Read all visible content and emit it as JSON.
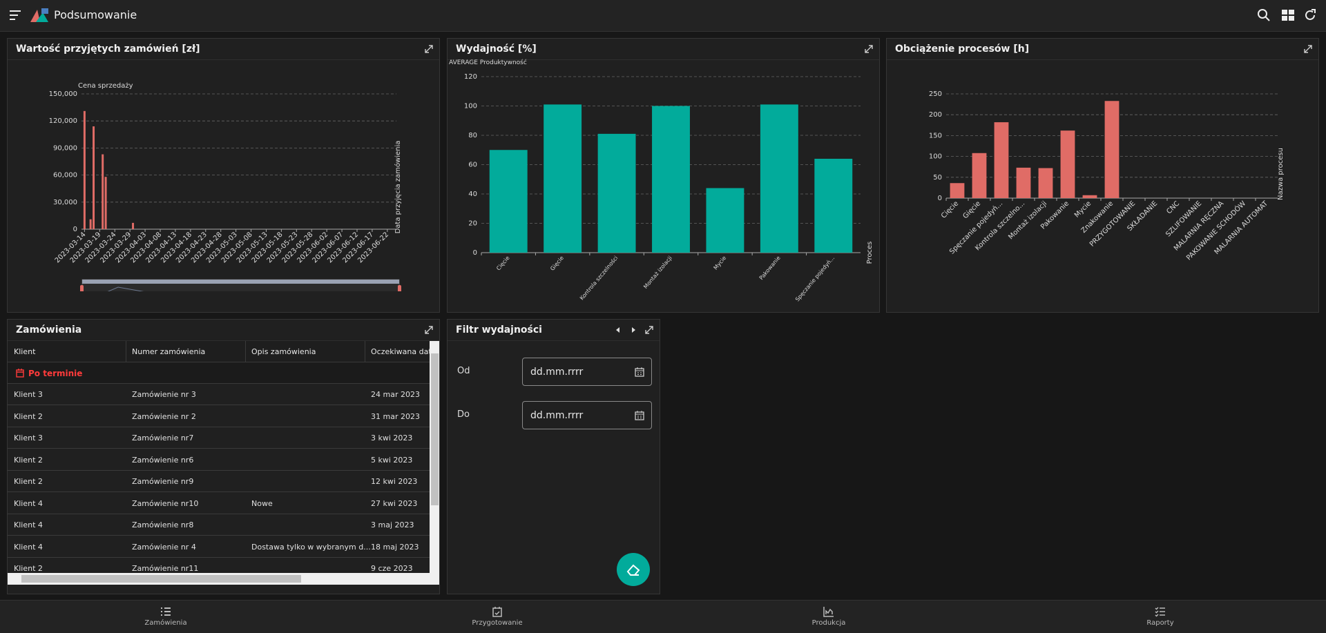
{
  "header": {
    "title": "Podsumowanie"
  },
  "chart_data": [
    {
      "type": "bar",
      "title": "Wartość przyjętych zamówień [zł]",
      "y_label": "Cena sprzedaży",
      "x_label": "Data przyjęcia zamówienia",
      "x": [
        "2023-03-14",
        "2023-03-16",
        "2023-03-17",
        "2023-03-20",
        "2023-03-21",
        "2023-03-30"
      ],
      "values": [
        131000,
        11000,
        114000,
        83000,
        58000,
        7000
      ],
      "color": "#e06c66",
      "xlim": [
        "2023-03-13",
        "2023-06-25"
      ],
      "xticks": [
        "2023-03-14",
        "2023-03-19",
        "2023-03-24",
        "2023-03-29",
        "2023-04-03",
        "2023-04-08",
        "2023-04-13",
        "2023-04-18",
        "2023-04-23",
        "2023-04-28",
        "2023-05-03",
        "2023-05-08",
        "2023-05-13",
        "2023-05-18",
        "2023-05-23",
        "2023-05-28",
        "2023-06-02",
        "2023-06-07",
        "2023-06-12",
        "2023-06-17",
        "2023-06-22"
      ],
      "ylim": [
        0,
        150000
      ],
      "yticks": [
        0,
        {
          "value": 30000,
          "label": "30,000"
        },
        {
          "value": 60000,
          "label": "60,000"
        },
        {
          "value": 90000,
          "label": "90,000"
        },
        {
          "value": 120000,
          "label": "120,000"
        },
        {
          "value": 150000,
          "label": "150,000"
        }
      ],
      "grid": true
    },
    {
      "type": "bar",
      "title": "Wydajność [%]",
      "subtitle": "AVERAGE Produktywność",
      "x_label": "Proces",
      "categories": [
        "Cięcie",
        "Gięcie",
        "Kontrola szczelności",
        "Montaż izolacji",
        "Mycie",
        "Pakowanie",
        "Spęczanie pojedyń..."
      ],
      "values": [
        70,
        101,
        81,
        100,
        44,
        101,
        64
      ],
      "color": "#02ab9b",
      "ylim": [
        0,
        120
      ],
      "yticks": [
        0,
        20,
        40,
        60,
        80,
        100,
        120
      ],
      "grid": true
    },
    {
      "type": "bar",
      "title": "Obciążenie procesów [h]",
      "x_label": "Nazwa procesu",
      "categories": [
        "Cięcie",
        "Gięcie",
        "Spęczanie pojedyń...",
        "Kontrola szczelno...",
        "Montaż izolacji",
        "Pakowanie",
        "Mycie",
        "Znakowanie",
        "PRZYGOTOWANIE",
        "SKŁADANIE",
        "CNC",
        "SZLIFOWANIE",
        "MALARNIA RĘCZNA",
        "PAKOWANIE SCHODÓW",
        "MALARNIA AUTOMAT"
      ],
      "values": [
        36,
        108,
        182,
        73,
        72,
        162,
        7,
        233,
        0,
        0,
        0,
        0,
        0,
        0,
        0
      ],
      "color": "#e06c66",
      "ylim": [
        0,
        250
      ],
      "yticks": [
        0,
        50,
        100,
        150,
        200,
        250
      ],
      "grid": true
    }
  ],
  "orders": {
    "title": "Zamówienia",
    "columns": [
      "Klient",
      "Numer zamówienia",
      "Opis zamówienia",
      "Oczekiwana dat"
    ],
    "group": "Po terminie",
    "rows": [
      {
        "client": "Klient 3",
        "number": "Zamówienie nr 3",
        "date": "24 mar 2023"
      },
      {
        "client": "Klient 2",
        "number": "Zamówienie nr 2",
        "date": "31 mar 2023"
      },
      {
        "client": "Klient 3",
        "number": "Zamówienie nr7",
        "date": "3 kwi 2023"
      },
      {
        "client": "Klient 2",
        "number": "Zamówienie nr6",
        "date": "5 kwi 2023"
      },
      {
        "client": "Klient 2",
        "number": "Zamówienie nr9",
        "date": "12 kwi 2023"
      },
      {
        "client": "Klient 4",
        "number": "Zamówienie nr10",
        "description": "Nowe",
        "date": "27 kwi 2023"
      },
      {
        "client": "Klient 4",
        "number": "Zamówienie nr8",
        "date": "3 maj 2023"
      },
      {
        "client": "Klient 4",
        "number": "Zamówienie nr 4",
        "description": "Dostawa tylko w wybranym d...",
        "date": "18 maj 2023"
      },
      {
        "client": "Klient 2",
        "number": "Zamówienie nr11",
        "date": "9 cze 2023"
      }
    ]
  },
  "filter": {
    "title": "Filtr wydajności",
    "fields": [
      {
        "label": "Od",
        "placeholder": "dd.mm.rrrr"
      },
      {
        "label": "Do",
        "placeholder": "dd.mm.rrrr"
      }
    ]
  },
  "nav": {
    "items": [
      {
        "label": "Zamówienia"
      },
      {
        "label": "Przygotowanie"
      },
      {
        "label": "Produkcja"
      },
      {
        "label": "Raporty"
      }
    ]
  }
}
